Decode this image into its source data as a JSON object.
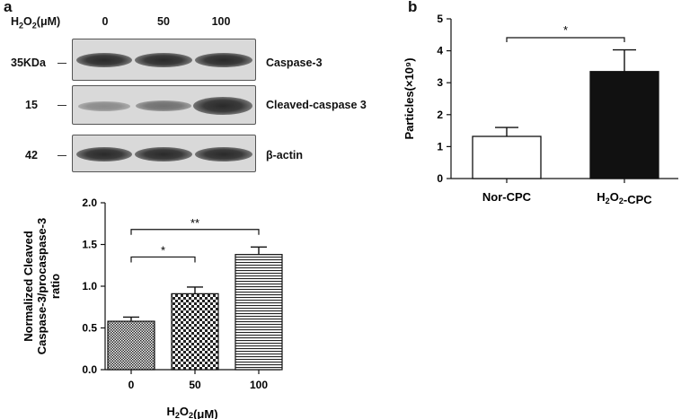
{
  "panel_a": {
    "letter": "a",
    "blot": {
      "header_label": "H2O2(μM)",
      "doses": [
        "0",
        "50",
        "100"
      ],
      "rows": [
        {
          "mw": "35KDa",
          "protein": "Caspase-3"
        },
        {
          "mw": "15",
          "protein": "Cleaved-caspase 3"
        },
        {
          "mw": "42",
          "protein": "β-actin"
        }
      ]
    }
  },
  "panel_b": {
    "letter": "b"
  },
  "chart_data": [
    {
      "type": "bar",
      "categories": [
        "0",
        "50",
        "100"
      ],
      "values": [
        0.58,
        0.91,
        1.38
      ],
      "errors": [
        0.05,
        0.08,
        0.09
      ],
      "ylabel": "Normalized Cleaved Caspase-3/procaspase-3 ratio",
      "xlabel": "H2O2(μM)",
      "ylim": [
        0,
        2.0
      ],
      "yticks": [
        "0.0",
        "0.5",
        "1.0",
        "1.5",
        "2.0"
      ],
      "bar_patterns": [
        "checker-fine",
        "checker-coarse",
        "horizontal-lines"
      ],
      "significance": [
        {
          "from": "0",
          "to": "50",
          "label": "*"
        },
        {
          "from": "0",
          "to": "100",
          "label": "**"
        }
      ],
      "grid": false
    },
    {
      "type": "bar",
      "categories": [
        "Nor-CPC",
        "H2O2-CPC"
      ],
      "values": [
        1.32,
        3.35
      ],
      "errors": [
        0.28,
        0.68
      ],
      "ylabel": "Particles(×10⁹)",
      "ylim": [
        0,
        5
      ],
      "yticks": [
        "0",
        "1",
        "2",
        "3",
        "4",
        "5"
      ],
      "bar_colors": [
        "#ffffff",
        "#111111"
      ],
      "significance": [
        {
          "from": "Nor-CPC",
          "to": "H2O2-CPC",
          "label": "*"
        }
      ],
      "grid": false
    }
  ]
}
